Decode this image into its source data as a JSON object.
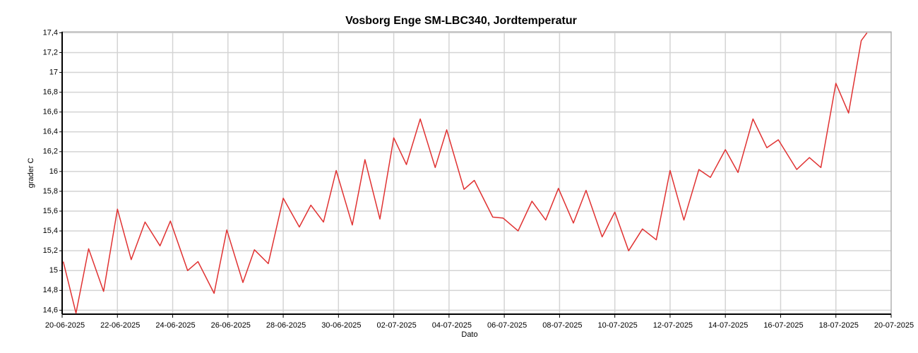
{
  "chart_data": {
    "type": "line",
    "title": "Vosborg Enge SM-LBC340, Jordtemperatur",
    "x_label": "Dato",
    "y_label": "grader C",
    "grid": true,
    "xlim": [
      "2025-06-20T00:00",
      "2025-07-20T00:00"
    ],
    "ylim": [
      14.56,
      17.41
    ],
    "xticks": [
      {
        "value": "2025-06-20T00:00",
        "label": "20-06-2025"
      },
      {
        "value": "2025-06-22T00:00",
        "label": "22-06-2025"
      },
      {
        "value": "2025-06-24T00:00",
        "label": "24-06-2025"
      },
      {
        "value": "2025-06-26T00:00",
        "label": "26-06-2025"
      },
      {
        "value": "2025-06-28T00:00",
        "label": "28-06-2025"
      },
      {
        "value": "2025-06-30T00:00",
        "label": "30-06-2025"
      },
      {
        "value": "2025-07-02T00:00",
        "label": "02-07-2025"
      },
      {
        "value": "2025-07-04T00:00",
        "label": "04-07-2025"
      },
      {
        "value": "2025-07-06T00:00",
        "label": "06-07-2025"
      },
      {
        "value": "2025-07-08T00:00",
        "label": "08-07-2025"
      },
      {
        "value": "2025-07-10T00:00",
        "label": "10-07-2025"
      },
      {
        "value": "2025-07-12T00:00",
        "label": "12-07-2025"
      },
      {
        "value": "2025-07-14T00:00",
        "label": "14-07-2025"
      },
      {
        "value": "2025-07-16T00:00",
        "label": "16-07-2025"
      },
      {
        "value": "2025-07-18T00:00",
        "label": "18-07-2025"
      },
      {
        "value": "2025-07-20T00:00",
        "label": "20-07-2025"
      }
    ],
    "yticks": [
      {
        "value": 14.6,
        "label": "14,6"
      },
      {
        "value": 14.8,
        "label": "14,8"
      },
      15,
      {
        "value": 15.2,
        "label": "15,2"
      },
      {
        "value": 15.4,
        "label": "15,4"
      },
      {
        "value": 15.6,
        "label": "15,6"
      },
      {
        "value": 15.8,
        "label": "15,8"
      },
      16,
      {
        "value": 16.2,
        "label": "16,2"
      },
      {
        "value": 16.4,
        "label": "16,4"
      },
      {
        "value": 16.6,
        "label": "16,6"
      },
      {
        "value": 16.8,
        "label": "16,8"
      },
      17,
      {
        "value": 17.2,
        "label": "17,2"
      },
      {
        "value": 17.4,
        "label": "17,4"
      }
    ],
    "x": [
      "2025-06-20T01:00",
      "2025-06-20T12:00",
      "2025-06-20T23:00",
      "2025-06-21T12:00",
      "2025-06-22T00:00",
      "2025-06-22T12:00",
      "2025-06-23T00:00",
      "2025-06-23T13:00",
      "2025-06-23T22:00",
      "2025-06-24T13:00",
      "2025-06-24T22:00",
      "2025-06-25T12:00",
      "2025-06-25T23:00",
      "2025-06-26T13:00",
      "2025-06-26T23:00",
      "2025-06-27T11:00",
      "2025-06-28T00:00",
      "2025-06-28T14:00",
      "2025-06-29T00:00",
      "2025-06-29T11:00",
      "2025-06-29T22:00",
      "2025-06-30T12:00",
      "2025-06-30T23:00",
      "2025-07-01T12:00",
      "2025-07-02T00:00",
      "2025-07-02T11:00",
      "2025-07-02T23:00",
      "2025-07-03T12:00",
      "2025-07-03T22:00",
      "2025-07-04T13:00",
      "2025-07-04T22:00",
      "2025-07-05T14:00",
      "2025-07-05T23:00",
      "2025-07-06T12:00",
      "2025-07-07T00:00",
      "2025-07-07T12:00",
      "2025-07-07T23:00",
      "2025-07-08T12:00",
      "2025-07-08T23:00",
      "2025-07-09T13:00",
      "2025-07-10T00:00",
      "2025-07-10T12:00",
      "2025-07-11T00:00",
      "2025-07-11T12:00",
      "2025-07-12T00:00",
      "2025-07-12T12:00",
      "2025-07-13T01:00",
      "2025-07-13T11:00",
      "2025-07-14T00:00",
      "2025-07-14T11:00",
      "2025-07-15T00:00",
      "2025-07-15T12:00",
      "2025-07-15T22:00",
      "2025-07-16T14:00",
      "2025-07-17T01:00",
      "2025-07-17T11:00",
      "2025-07-18T00:00",
      "2025-07-18T11:00",
      "2025-07-18T22:00",
      "2025-07-19T03:00"
    ],
    "series": [
      {
        "name": "Jordtemperatur",
        "color": "#e03232",
        "values": [
          15.09,
          14.57,
          15.22,
          14.79,
          15.62,
          15.11,
          15.49,
          15.25,
          15.5,
          15.0,
          15.09,
          14.77,
          15.41,
          14.88,
          15.21,
          15.07,
          15.73,
          15.44,
          15.66,
          15.49,
          16.01,
          15.46,
          16.12,
          15.52,
          16.34,
          16.07,
          16.53,
          16.04,
          16.42,
          15.82,
          15.91,
          15.54,
          15.53,
          15.4,
          15.7,
          15.51,
          15.83,
          15.48,
          15.81,
          15.34,
          15.59,
          15.2,
          15.42,
          15.31,
          16.01,
          15.51,
          16.02,
          15.94,
          16.22,
          15.99,
          16.53,
          16.24,
          16.32,
          16.02,
          16.14,
          16.04,
          16.89,
          16.59,
          17.32,
          17.4
        ]
      }
    ]
  }
}
